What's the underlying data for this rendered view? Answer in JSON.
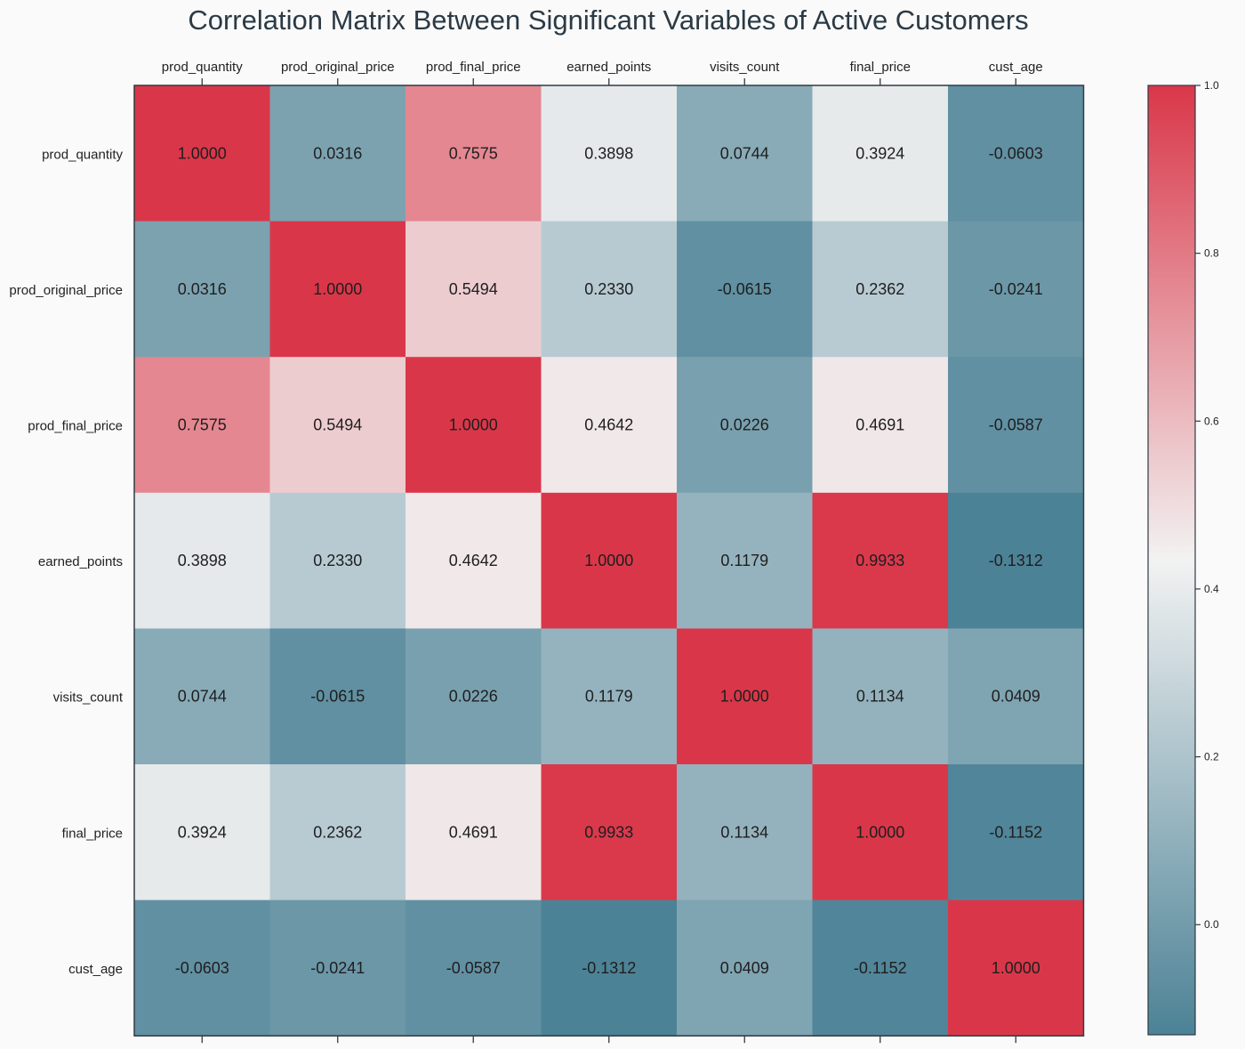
{
  "chart_data": {
    "type": "heatmap",
    "title": "Correlation Matrix Between Significant Variables of Active Customers",
    "x_labels": [
      "prod_quantity",
      "prod_original_price",
      "prod_final_price",
      "earned_points",
      "visits_count",
      "final_price",
      "cust_age"
    ],
    "y_labels": [
      "prod_quantity",
      "prod_original_price",
      "prod_final_price",
      "earned_points",
      "visits_count",
      "final_price",
      "cust_age"
    ],
    "values": [
      [
        1.0,
        0.0316,
        0.7575,
        0.3898,
        0.0744,
        0.3924,
        -0.0603
      ],
      [
        0.0316,
        1.0,
        0.5494,
        0.233,
        -0.0615,
        0.2362,
        -0.0241
      ],
      [
        0.7575,
        0.5494,
        1.0,
        0.4642,
        0.0226,
        0.4691,
        -0.0587
      ],
      [
        0.3898,
        0.233,
        0.4642,
        1.0,
        0.1179,
        0.9933,
        -0.1312
      ],
      [
        0.0744,
        -0.0615,
        0.0226,
        0.1179,
        1.0,
        0.1134,
        0.0409
      ],
      [
        0.3924,
        0.2362,
        0.4691,
        0.9933,
        0.1134,
        1.0,
        -0.1152
      ],
      [
        -0.0603,
        -0.0241,
        -0.0587,
        -0.1312,
        0.0409,
        -0.1152,
        1.0
      ]
    ],
    "colorbar": {
      "min": -0.1312,
      "max": 1.0,
      "ticks": [
        0.0,
        0.2,
        0.4,
        0.6,
        0.8,
        1.0
      ],
      "tick_labels": [
        "0.0",
        "0.2",
        "0.4",
        "0.6",
        "0.8",
        "1.0"
      ],
      "low_color": "#4c8296",
      "mid_color": "#f2f2f2",
      "high_color": "#d93749"
    },
    "value_format_decimals": 4,
    "x_axis_position": "top",
    "grid": false
  }
}
